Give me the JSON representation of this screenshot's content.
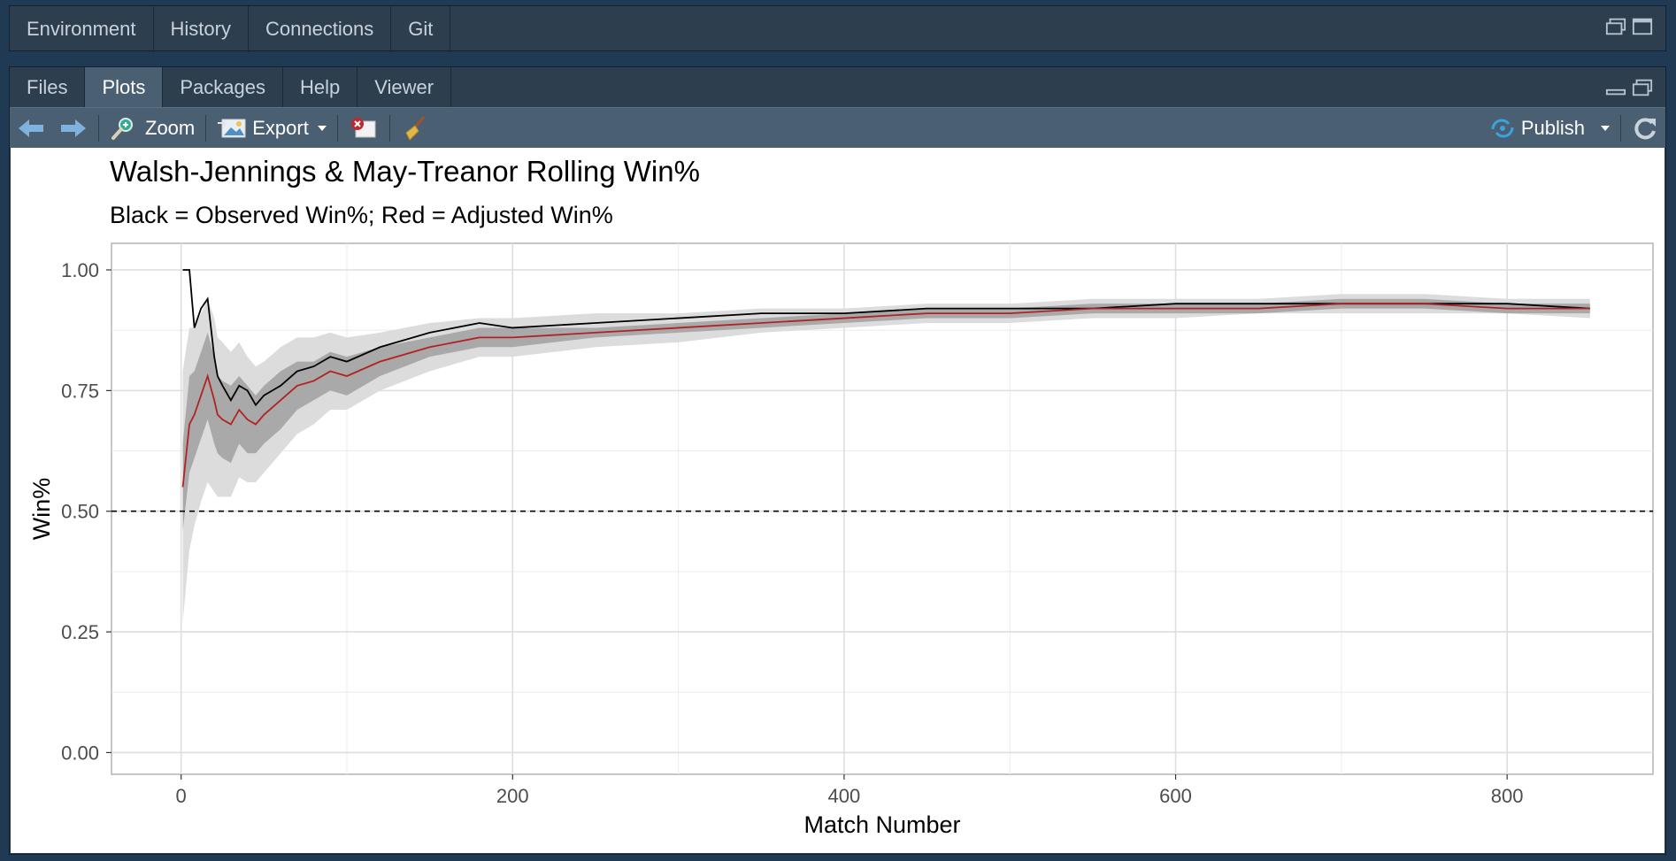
{
  "top_tabs": [
    "Environment",
    "History",
    "Connections",
    "Git"
  ],
  "bottom_tabs": [
    "Files",
    "Plots",
    "Packages",
    "Help",
    "Viewer"
  ],
  "active_tab": "Plots",
  "toolbar": {
    "zoom_label": "Zoom",
    "export_label": "Export",
    "publish_label": "Publish"
  },
  "icons": [
    "back-arrow-icon",
    "forward-arrow-icon",
    "zoom-icon",
    "export-icon",
    "delete-plot-icon",
    "broom-icon",
    "publish-icon",
    "refresh-icon",
    "minimize-icon",
    "maximize-icon"
  ],
  "colors": {
    "observed": "#000000",
    "adjusted": "#b22222",
    "inner_band": "#a9a9a9",
    "outer_band": "#dcdcdc",
    "active_tab": "#4a5f72"
  },
  "chart_data": {
    "type": "line",
    "title": "Walsh-Jennings & May-Treanor Rolling Win%",
    "subtitle": "Black = Observed Win%; Red = Adjusted Win%",
    "xlabel": "Match Number",
    "ylabel": "Win%",
    "xlim": [
      -42,
      888
    ],
    "ylim": [
      -0.045,
      1.055
    ],
    "x_ticks": [
      0,
      200,
      400,
      600,
      800
    ],
    "x_tick_labels": [
      "0",
      "200",
      "400",
      "600",
      "800"
    ],
    "y_ticks": [
      0.0,
      0.25,
      0.5,
      0.75,
      1.0
    ],
    "y_tick_labels": [
      "0.00",
      "0.25",
      "0.50",
      "0.75",
      "1.00"
    ],
    "grid": true,
    "reference_line": {
      "y": 0.5,
      "style": "dashed"
    },
    "x": [
      1,
      5,
      8,
      12,
      16,
      20,
      22,
      25,
      30,
      35,
      40,
      45,
      50,
      60,
      70,
      80,
      90,
      100,
      120,
      150,
      180,
      200,
      250,
      300,
      350,
      400,
      450,
      500,
      550,
      600,
      650,
      700,
      750,
      800,
      850
    ],
    "series": [
      {
        "values": [
          1.0,
          1.0,
          0.88,
          0.92,
          0.94,
          0.82,
          0.78,
          0.76,
          0.73,
          0.76,
          0.75,
          0.72,
          0.74,
          0.76,
          0.79,
          0.8,
          0.82,
          0.81,
          0.84,
          0.87,
          0.89,
          0.88,
          0.89,
          0.9,
          0.91,
          0.91,
          0.92,
          0.92,
          0.92,
          0.93,
          0.93,
          0.93,
          0.93,
          0.93,
          0.92
        ]
      },
      {
        "values": [
          0.55,
          0.68,
          0.7,
          0.74,
          0.78,
          0.73,
          0.7,
          0.69,
          0.68,
          0.71,
          0.69,
          0.68,
          0.7,
          0.73,
          0.76,
          0.77,
          0.79,
          0.78,
          0.81,
          0.84,
          0.86,
          0.86,
          0.87,
          0.88,
          0.89,
          0.9,
          0.91,
          0.91,
          0.92,
          0.92,
          0.92,
          0.93,
          0.93,
          0.92,
          0.92
        ]
      }
    ],
    "inner_band": {
      "lower": [
        0.46,
        0.58,
        0.61,
        0.65,
        0.69,
        0.64,
        0.62,
        0.61,
        0.6,
        0.64,
        0.62,
        0.62,
        0.64,
        0.67,
        0.71,
        0.73,
        0.75,
        0.74,
        0.78,
        0.82,
        0.84,
        0.84,
        0.86,
        0.87,
        0.88,
        0.89,
        0.9,
        0.9,
        0.91,
        0.91,
        0.91,
        0.92,
        0.92,
        0.91,
        0.91
      ],
      "upper": [
        0.64,
        0.78,
        0.79,
        0.83,
        0.87,
        0.82,
        0.78,
        0.77,
        0.76,
        0.78,
        0.76,
        0.74,
        0.76,
        0.79,
        0.81,
        0.81,
        0.83,
        0.82,
        0.84,
        0.86,
        0.88,
        0.88,
        0.88,
        0.89,
        0.9,
        0.91,
        0.92,
        0.92,
        0.93,
        0.93,
        0.93,
        0.94,
        0.94,
        0.93,
        0.93
      ]
    },
    "outer_band": {
      "lower": [
        0.27,
        0.42,
        0.47,
        0.52,
        0.56,
        0.54,
        0.53,
        0.53,
        0.53,
        0.57,
        0.56,
        0.56,
        0.58,
        0.62,
        0.66,
        0.68,
        0.71,
        0.71,
        0.75,
        0.79,
        0.82,
        0.82,
        0.84,
        0.85,
        0.87,
        0.88,
        0.89,
        0.89,
        0.9,
        0.9,
        0.91,
        0.91,
        0.91,
        0.91,
        0.9
      ],
      "upper": [
        0.79,
        0.88,
        0.88,
        0.91,
        0.94,
        0.9,
        0.86,
        0.85,
        0.83,
        0.85,
        0.82,
        0.8,
        0.81,
        0.84,
        0.86,
        0.86,
        0.87,
        0.86,
        0.87,
        0.89,
        0.9,
        0.9,
        0.91,
        0.91,
        0.92,
        0.92,
        0.93,
        0.93,
        0.94,
        0.94,
        0.94,
        0.95,
        0.95,
        0.94,
        0.94
      ]
    }
  }
}
